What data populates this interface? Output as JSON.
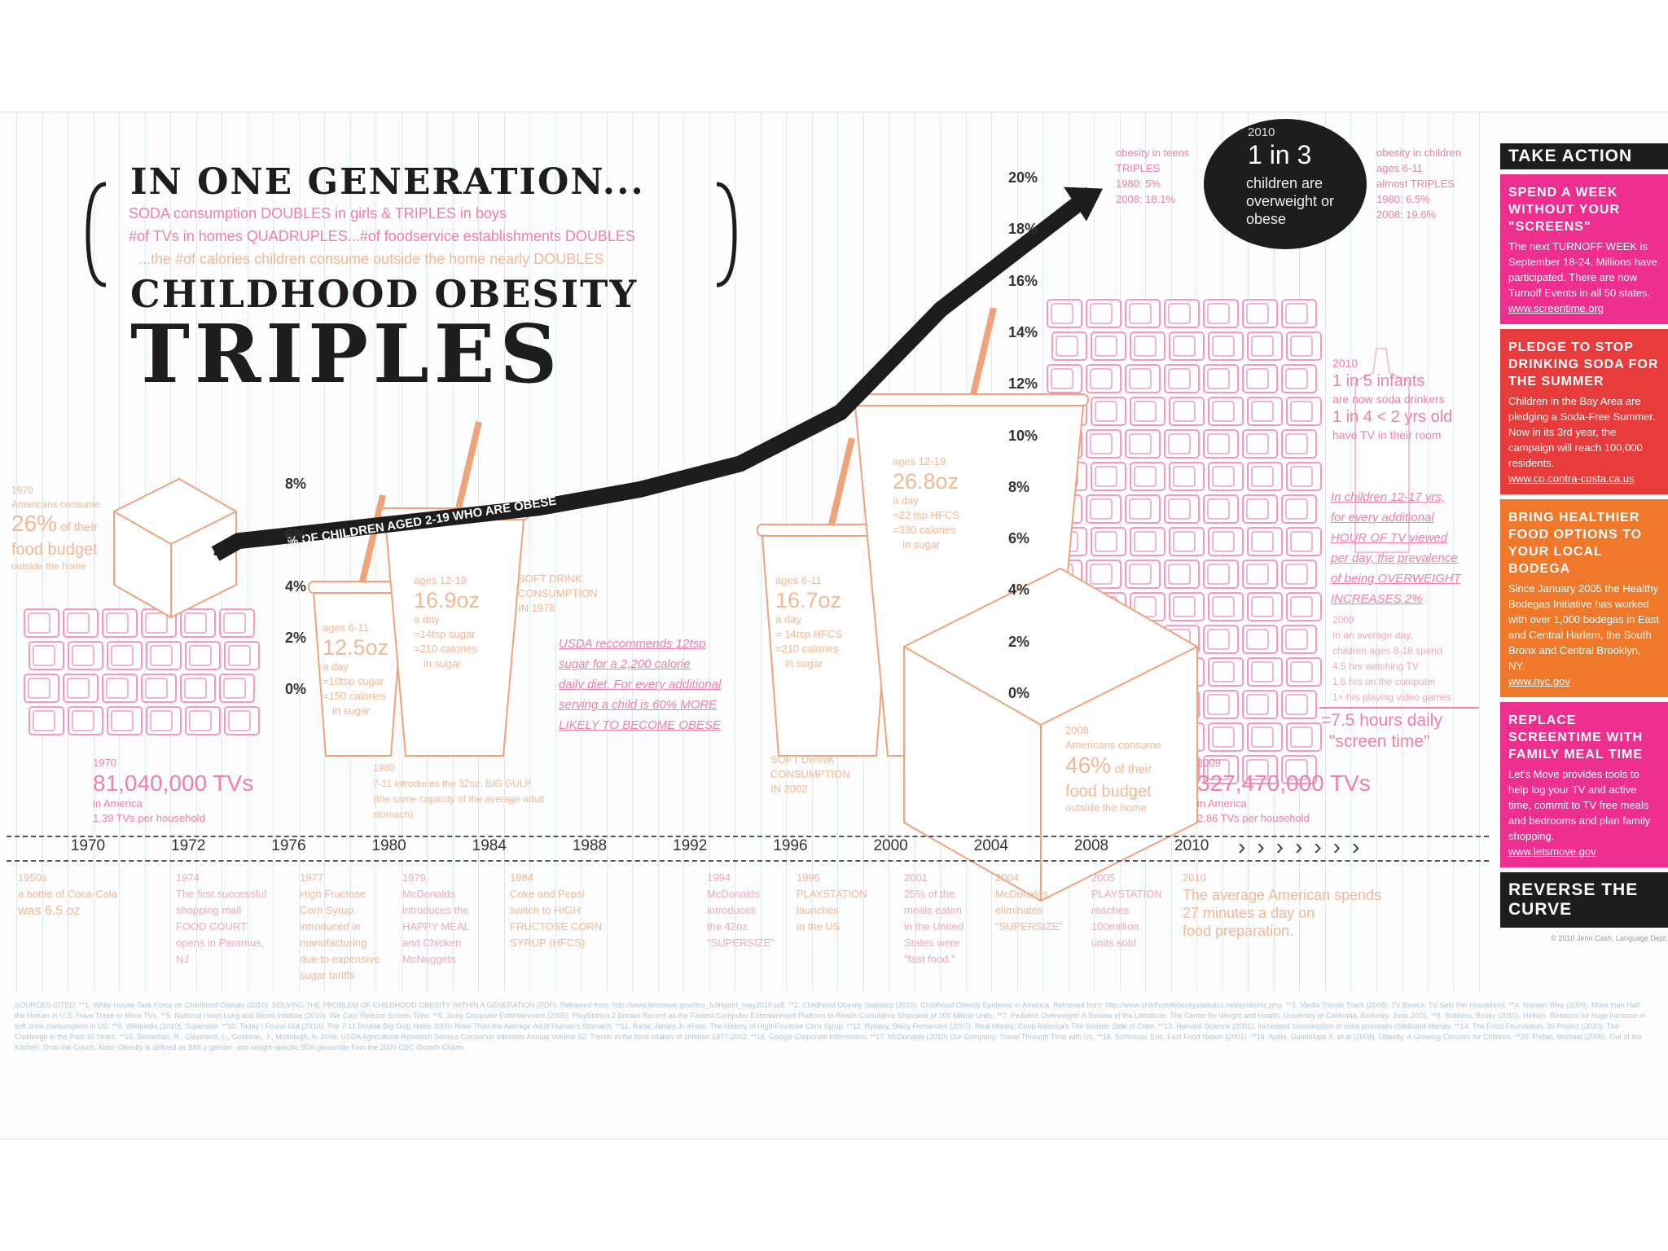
{
  "title": {
    "line1": "IN ONE GENERATION...",
    "sub1": "SODA consumption DOUBLES in girls & TRIPLES in boys",
    "sub2": "#of TVs in homes QUADRUPLES...#of foodservice establishments DOUBLES",
    "sub3": "...the #of calories children consume outside the home nearly DOUBLES",
    "line2": "CHILDHOOD OBESITY",
    "line3": "TRIPLES"
  },
  "chart_data": {
    "type": "line",
    "series": [
      {
        "name": "% OF CHILDREN AGED 2-19 WHO ARE OBESE",
        "x": [
          1972,
          1976,
          1988,
          1992,
          1996,
          2000,
          2004,
          2008,
          2010
        ],
        "y": [
          5,
          5.5,
          6.8,
          7.5,
          8.5,
          10.5,
          14.5,
          17.5,
          19
        ]
      }
    ],
    "x_ticks": [
      "1970",
      "1972",
      "1976",
      "1980",
      "1984",
      "1988",
      "1992",
      "1996",
      "2000",
      "2004",
      "2008",
      "2010"
    ],
    "y_ticks_left": [
      "8%",
      "6%",
      "4%",
      "2%",
      "0%"
    ],
    "y_ticks_right": [
      "20%",
      "18%",
      "16%",
      "14%",
      "12%",
      "10%",
      "8%",
      "6%",
      "4%",
      "2%",
      "0%"
    ],
    "ylim": [
      0,
      20
    ]
  },
  "callout_2010": {
    "year": "2010",
    "stat": "1 in 3",
    "text": "children are overweight or obese"
  },
  "teens": {
    "l1": "obesity in teens",
    "l2": "TRIPLES",
    "l3": "1980: 5%",
    "l4": "2008: 18.1%"
  },
  "kids": {
    "l1": "obesity in children",
    "l2": "ages 6-11",
    "l3": "almost TRIPLES",
    "l4": "1980: 6.5%",
    "l5": "2008: 19.6%"
  },
  "infants": {
    "year": "2010",
    "l1": "1 in 5 infants",
    "l2": "are now soda drinkers",
    "l3": "1 in 4 < 2 yrs old",
    "l4": "have TV in their room"
  },
  "tv_note": {
    "l1": "In children 12-17 yrs,",
    "l2": "for every additional",
    "l3": "HOUR OF TV viewed",
    "l4": "per day, the prevalence",
    "l5": "of being OVERWEIGHT",
    "l6": "INCREASES 2%"
  },
  "tv2009": {
    "year": "2009",
    "l1": "In an average day,",
    "l2": "children ages 8-18 spend",
    "l3": "4.5 hrs watching TV",
    "l4": "1.5 hrs on the computer",
    "l5": "1+ hrs playing video games",
    "big": "=7.5 hours daily",
    "big2": "\"screen time\""
  },
  "food1970": {
    "year": "1970",
    "l1": "Americans consume",
    "big": "26%",
    "l2": "of their",
    "l3": "food budget",
    "l4": "outside the home"
  },
  "food2008": {
    "year": "2008",
    "l1": "Americans consume",
    "big": "46%",
    "l2": "of their",
    "l3": "food budget",
    "l4": "outside the home"
  },
  "tvs1970": {
    "year": "1970",
    "big": "81,040,000 TVs",
    "l1": "in America",
    "l2": "1.39 TVs per household"
  },
  "tvs2009": {
    "year": "2009",
    "big": "327,470,000 TVs",
    "l1": "in America",
    "l2": "2.86 TVs per household"
  },
  "cup1": {
    "l1": "ages 6-11",
    "big": "12.5oz",
    "l2": "a day",
    "l3": "=10tsp sugar",
    "l4": "=150 calories",
    "l5": "in sugar"
  },
  "cup2": {
    "l1": "ages 12-19",
    "big": "16.9oz",
    "l2": "a day",
    "l3": "=14tsp sugar",
    "l4": "=210 calories",
    "l5": "in sugar"
  },
  "cup3": {
    "l1": "ages 6-11",
    "big": "16.7oz",
    "l2": "a day",
    "l3": "= 14tsp HFCS",
    "l4": "=210 calories",
    "l5": "in sugar"
  },
  "cup4": {
    "l1": "ages 12-19",
    "big": "26.8oz",
    "l2": "a day",
    "l3": "=22 tsp HFCS",
    "l4": "=330 calories",
    "l5": "in sugar"
  },
  "soft1978": {
    "l1": "SOFT DRINK",
    "l2": "CONSUMPTION",
    "l3": "IN 1978"
  },
  "soft2002": {
    "l1": "SOFT DRINK",
    "l2": "CONSUMPTION",
    "l3": "IN 2002"
  },
  "usda": {
    "l1": "USDA reccommends 12tsp",
    "l2": "sugar for a 2,200 calorie",
    "l3": "daily diet. For every additional",
    "l4": "serving a child is 60% MORE",
    "l5": "LIKELY TO BECOME OBESE"
  },
  "gulp": {
    "year": "1980",
    "l1": "7-11 introduces the 32oz. BIG GULP",
    "l2": "(the same capacity of the average adult",
    "l3": "stomach)"
  },
  "events": [
    {
      "year": "1950s",
      "lines": [
        "a bottle of Coca-Cola",
        "was 6.5 oz"
      ]
    },
    {
      "year": "1974",
      "lines": [
        "The first successful",
        "shopping mall",
        "FOOD COURT",
        "opens in Paramus, NJ"
      ]
    },
    {
      "year": "1977",
      "lines": [
        "High Fructose",
        "Corn Syrup",
        "introduced in",
        "manufacturing",
        "due to expensive",
        "sugar tariffs"
      ]
    },
    {
      "year": "1979",
      "lines": [
        "McDonalds",
        "introduces the",
        "HAPPY MEAL",
        "and Chicken",
        "McNuggets"
      ]
    },
    {
      "year": "1984",
      "lines": [
        "Coke and Pepsi",
        "switch to HIGH",
        "FRUCTOSE CORN",
        "SYRUP (HFCS)"
      ]
    },
    {
      "year": "1994",
      "lines": [
        "McDonalds",
        "introduces",
        "the 42oz",
        "\"SUPERSIZE\""
      ]
    },
    {
      "year": "1995",
      "lines": [
        "PLAYSTATION",
        "launches",
        "in the US"
      ]
    },
    {
      "year": "2001",
      "lines": [
        "25% of the",
        "meals eaten",
        "in the United",
        "States were",
        "\"fast food.\""
      ]
    },
    {
      "year": "2004",
      "lines": [
        "McDonalds",
        "eliminates",
        "\"SUPERSIZE\""
      ]
    },
    {
      "year": "2005",
      "lines": [
        "PLAYSTATION",
        "reaches",
        "100million",
        "units sold"
      ]
    },
    {
      "year": "2010",
      "lines": [
        "The average American spends",
        "27 minutes a day on",
        "food preparation."
      ]
    }
  ],
  "side": {
    "head": "TAKE ACTION",
    "cards": [
      {
        "title": "SPEND A WEEK WITHOUT YOUR \"SCREENS\"",
        "body": "The next TURNOFF WEEK is September 18-24. Millions have participated. There are now Turnoff Events in all 50 states.",
        "link": "www.screentime.org",
        "color": "#ee2f8f"
      },
      {
        "title": "PLEDGE TO STOP DRINKING SODA FOR THE SUMMER",
        "body": "Children in the Bay Area are pledging a Soda-Free Summer. Now in its 3rd year, the campaign will reach 100,000 residents.",
        "link": "www.co.contra-costa.ca.us",
        "color": "#e83c3c"
      },
      {
        "title": "BRING HEALTHIER FOOD OPTIONS TO YOUR LOCAL BODEGA",
        "body": "Since January 2005 the Healthy Bodegas Initiative has worked with over 1,000 bodegas in East and Central Harlem, the South Bronx and Central Brooklyn, NY.",
        "link": "www.nyc.gov",
        "color": "#f0782b"
      },
      {
        "title": "REPLACE SCREENTIME WITH FAMILY MEAL TIME",
        "body": "Let's Move provides tools to help log your TV and active time, commit to TV free meals and bedrooms and plan family shopping.",
        "link": "www.letsmove.gov",
        "color": "#ee2f8f"
      }
    ],
    "foot": "REVERSE THE CURVE",
    "credit": "© 2010 Jenn Cash, Language Dept."
  },
  "sources_text": "SOURCES CITED: **1. White House Task Force on Childhood Obesity (2010). SOLVING THE PROBLEM OF CHILDHOOD OBESITY WITHIN A GENERATION (PDF). Retrieved from: http://www.letsmove.gov/tfco_fullreport_may2010.pdf. **2. Childhood Obesity Statistics (2010). Childhood Obesity Epidemic in America. Retrieved from: http://www.childhoodobesitystatistics.net/epidemic.php. **3. Media Trends Track (2008). TV Basics: TV Sets Per Household. **4. Nielsen Wire (2009). More than Half the Homes in U.S. Have Three or More TVs. **5. National Heart Lung and Blood Institute (2010). We Can! Reduce Screen Time. **6. Sony Computer Entertainment (2005). PlayStation 2 Breaks Record as the Fastest Computer Entertainment Platform to Reach Cumulative Shipment of 100 Million Units. **7. Pediatric Overweight: A Review of the Literature. The Center for Weight and Health, University of California, Berkeley. June 2001. **8. Robbins, Becky (2010). Helium. Reasons for huge increase in soft drink consumption in US. **9. Wikipedia (2010). Supersize. **10. Today I Found Out (2010). The 7-11 Double Big Gulp Holds 200% More Than the Average Adult Human's Stomach. **11. Rada, James Jr. eHow. The History of High-Fructose Corn Syrup. **12. Rysavy, Stacy Fernandes (2007). Real Money: Coop America's The Sinister Side of Coke. **13. Harvard Science (2001). Increased consumption of soda promotes childhood obesity. **14. The Food Foundation. 30 Project (2010). The Challenge in the Past 30 Years. **15. Sebastian, R., Cleveland, L., Goldman, J., Moshfegh, A. 2006. USDA Agricultural Research Service Consumer Interests Annual Volume 52: Trends in the food intakes of children 1977-2002. **16. Google Corporate Information. **17. McDonalds (2010) Our Company: Travel Through Time with Us. **18. Schlosser, Eric. Fast Food Nation (2001). **19. Ayala, Guadalupe X. et al (2008). Obesity: A Growing Concern for Children. **20. Pollan, Michael (2009). Out of the Kitchen, Onto the Couch. Note: Obesity is defined as BMI ≥ gender- and weight-specific 95th percentile from the 2000 CDC Growth Charts.",
  "colors": {
    "pink": "#ee7fae",
    "orange": "#f0a37a",
    "line": "#1d1d1d"
  }
}
